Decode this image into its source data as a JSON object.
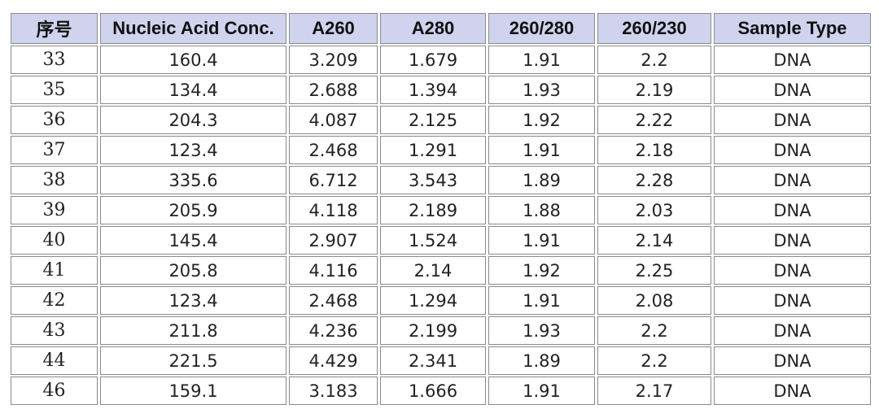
{
  "table": {
    "headers": [
      "序号",
      "Nucleic Acid Conc.",
      "A260",
      "A280",
      "260/280",
      "260/230",
      "Sample Type"
    ],
    "rows": [
      [
        "33",
        "160.4",
        "3.209",
        "1.679",
        "1.91",
        "2.2",
        "DNA"
      ],
      [
        "35",
        "134.4",
        "2.688",
        "1.394",
        "1.93",
        "2.19",
        "DNA"
      ],
      [
        "36",
        "204.3",
        "4.087",
        "2.125",
        "1.92",
        "2.22",
        "DNA"
      ],
      [
        "37",
        "123.4",
        "2.468",
        "1.291",
        "1.91",
        "2.18",
        "DNA"
      ],
      [
        "38",
        "335.6",
        "6.712",
        "3.543",
        "1.89",
        "2.28",
        "DNA"
      ],
      [
        "39",
        "205.9",
        "4.118",
        "2.189",
        "1.88",
        "2.03",
        "DNA"
      ],
      [
        "40",
        "145.4",
        "2.907",
        "1.524",
        "1.91",
        "2.14",
        "DNA"
      ],
      [
        "41",
        "205.8",
        "4.116",
        "2.14",
        "1.92",
        "2.25",
        "DNA"
      ],
      [
        "42",
        "123.4",
        "2.468",
        "1.294",
        "1.91",
        "2.08",
        "DNA"
      ],
      [
        "43",
        "211.8",
        "4.236",
        "2.199",
        "1.93",
        "2.2",
        "DNA"
      ],
      [
        "44",
        "221.5",
        "4.429",
        "2.341",
        "1.89",
        "2.2",
        "DNA"
      ],
      [
        "46",
        "159.1",
        "3.183",
        "1.666",
        "1.91",
        "2.17",
        "DNA"
      ]
    ]
  },
  "colors": {
    "header_background": "#cfd3ed",
    "cell_border": "#8a8a8a"
  }
}
